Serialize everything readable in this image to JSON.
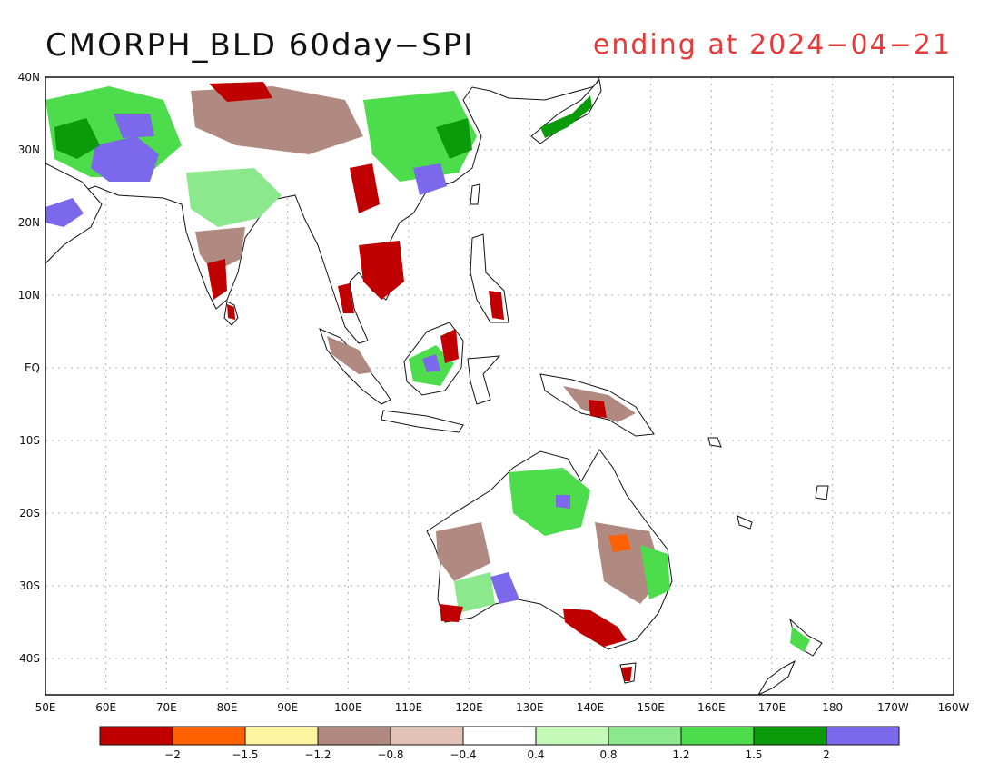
{
  "title": "CMORPH_BLD 60day−SPI",
  "subtitle": "ending at 2024−04−21",
  "subtitle_color": "#e8393a",
  "map": {
    "lat_labels": [
      "40N",
      "30N",
      "20N",
      "10N",
      "EQ",
      "10S",
      "20S",
      "30S",
      "40S"
    ],
    "lon_labels": [
      "50E",
      "60E",
      "70E",
      "80E",
      "90E",
      "100E",
      "110E",
      "120E",
      "130E",
      "140E",
      "150E",
      "160E",
      "170E",
      "180",
      "170W",
      "160W"
    ],
    "lat_range": [
      -45,
      40
    ],
    "lon_range": [
      50,
      200
    ],
    "grid": "dotted"
  },
  "colorbar": {
    "colors": [
      "#c00000",
      "#ff6000",
      "#fff5a0",
      "#b08a80",
      "#e3c2b6",
      "#ffffff",
      "#c6f8b8",
      "#8ce88c",
      "#4cdc4c",
      "#0a9a0a",
      "#7b68ea"
    ],
    "labels": [
      "−2",
      "−1.5",
      "−1.2",
      "−0.8",
      "−0.4",
      "0.4",
      "0.8",
      "1.2",
      "1.5",
      "2"
    ]
  }
}
